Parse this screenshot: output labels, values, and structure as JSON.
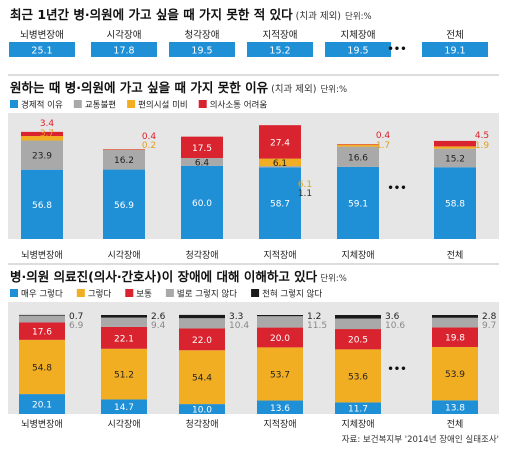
{
  "source": "자료: 보건복지부 '2014년 장애인 실태조사'",
  "colors": {
    "blue": "#1f8fd6",
    "gray": "#a9a9a9",
    "orange": "#f2ae22",
    "red": "#d9232e",
    "black": "#1a1a1a",
    "band": "#e6e6e6"
  },
  "ellipsis": "•••",
  "chart_data": [
    {
      "type": "table",
      "title": "최근 1년간 병·의원에 가고 싶을 때 가지 못한 적 있다",
      "subtitle": "(치과 제외)",
      "unit": "단위:%",
      "categories": [
        "뇌병변장애",
        "시각장애",
        "청각장애",
        "지적장애",
        "지체장애",
        "전체"
      ],
      "values": [
        25.1,
        17.8,
        19.5,
        15.2,
        19.5,
        19.1
      ]
    },
    {
      "type": "bar",
      "stacked": true,
      "title": "원하는 때 병·의원에 가고 싶을 때 가지 못한 이유",
      "subtitle": "(치과 제외)",
      "unit": "단위:%",
      "categories": [
        "뇌병변장애",
        "시각장애",
        "청각장애",
        "지적장애",
        "지체장애",
        "전체"
      ],
      "series": [
        {
          "name": "경제적 이유",
          "color": "#1f8fd6",
          "values": [
            56.8,
            56.9,
            60.0,
            58.7,
            59.1,
            58.8
          ]
        },
        {
          "name": "교통불편",
          "color": "#a9a9a9",
          "values": [
            23.9,
            16.2,
            6.4,
            1.1,
            16.6,
            15.2
          ]
        },
        {
          "name": "편의시설 미비",
          "color": "#f2ae22",
          "values": [
            3.7,
            0.2,
            0,
            6.1,
            1.7,
            1.9
          ]
        },
        {
          "name": "의사소통 어려움",
          "color": "#d9232e",
          "values": [
            3.4,
            0.4,
            17.5,
            27.4,
            0.4,
            4.5
          ]
        }
      ]
    },
    {
      "type": "bar",
      "stacked": true,
      "title": "병·의원 의료진(의사·간호사)이 장애에 대해 이해하고 있다",
      "unit": "단위:%",
      "categories": [
        "뇌병변장애",
        "시각장애",
        "청각장애",
        "지적장애",
        "지체장애",
        "전체"
      ],
      "series": [
        {
          "name": "매우 그렇다",
          "color": "#1f8fd6",
          "values": [
            20.1,
            14.7,
            10.0,
            13.6,
            11.7,
            13.8
          ]
        },
        {
          "name": "그렇다",
          "color": "#f2ae22",
          "values": [
            54.8,
            51.2,
            54.4,
            53.7,
            53.6,
            53.9
          ]
        },
        {
          "name": "보통",
          "color": "#d9232e",
          "values": [
            17.6,
            22.1,
            22.0,
            20.0,
            20.5,
            19.8
          ]
        },
        {
          "name": "별로 그렇지 않다",
          "color": "#a9a9a9",
          "values": [
            6.9,
            9.4,
            10.4,
            11.5,
            10.6,
            9.7
          ]
        },
        {
          "name": "전혀 그렇지 않다",
          "color": "#1a1a1a",
          "values": [
            0.7,
            2.6,
            3.3,
            1.2,
            3.6,
            2.8
          ]
        }
      ]
    }
  ]
}
